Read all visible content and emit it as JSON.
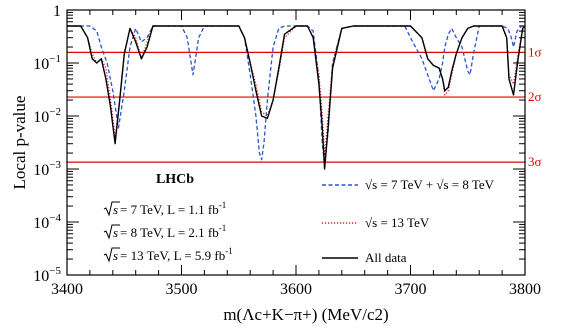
{
  "chart_data": {
    "type": "line",
    "xlabel": "m(Λc+K−π+) (MeV/c2)",
    "ylabel": "Local p-value",
    "xlim": [
      3400,
      3800
    ],
    "ylim": [
      1e-05,
      1
    ],
    "y_scale": "log",
    "x_ticks": [
      3400,
      3500,
      3600,
      3700,
      3800
    ],
    "y_ticks": [
      {
        "mant": "10",
        "exp": "−5",
        "value": 1e-05
      },
      {
        "mant": "10",
        "exp": "−4",
        "value": 0.0001
      },
      {
        "mant": "10",
        "exp": "−3",
        "value": 0.001
      },
      {
        "mant": "10",
        "exp": "−2",
        "value": 0.01
      },
      {
        "mant": "10",
        "exp": "−1",
        "value": 0.1
      },
      {
        "mant": "1",
        "exp": "",
        "value": 1
      }
    ],
    "experiment": "LHCb",
    "annotations": [
      {
        "pre": "s",
        "text": " = 7 TeV,  L = 1.1 fb",
        "sup": "-1"
      },
      {
        "pre": "s",
        "text": " = 8 TeV,  L = 2.1 fb",
        "sup": "-1"
      },
      {
        "pre": "s",
        "text": " = 13 TeV,  L = 5.9 fb",
        "sup": "-1"
      }
    ],
    "legend_position": "bottom-right",
    "sigma_lines": [
      {
        "label": "1σ",
        "p": 0.1587
      },
      {
        "label": "2σ",
        "p": 0.02275
      },
      {
        "label": "3σ",
        "p": 0.00135
      }
    ],
    "series": [
      {
        "name": "√s = 7 TeV + √s = 8 TeV",
        "color": "#2a55c8",
        "style": "dashed",
        "x": [
          3400,
          3412,
          3420,
          3426,
          3430,
          3435,
          3440,
          3445,
          3450,
          3455,
          3460,
          3465,
          3470,
          3475,
          3480,
          3485,
          3490,
          3495,
          3500,
          3505,
          3510,
          3515,
          3520,
          3525,
          3530,
          3540,
          3550,
          3555,
          3560,
          3565,
          3568,
          3570,
          3572,
          3575,
          3580,
          3585,
          3590,
          3600,
          3610,
          3615,
          3620,
          3623,
          3625,
          3628,
          3632,
          3640,
          3650,
          3660,
          3670,
          3680,
          3690,
          3695,
          3700,
          3710,
          3715,
          3720,
          3725,
          3728,
          3730,
          3733,
          3736,
          3740,
          3745,
          3750,
          3752,
          3755,
          3760,
          3770,
          3780,
          3785,
          3788,
          3790,
          3793,
          3797,
          3800
        ],
        "y": [
          0.5,
          0.5,
          0.5,
          0.4,
          0.2,
          0.1,
          0.03,
          0.006,
          0.03,
          0.2,
          0.45,
          0.25,
          0.3,
          0.5,
          0.5,
          0.5,
          0.5,
          0.5,
          0.5,
          0.3,
          0.06,
          0.3,
          0.5,
          0.5,
          0.5,
          0.5,
          0.5,
          0.3,
          0.06,
          0.01,
          0.002,
          0.0015,
          0.003,
          0.02,
          0.2,
          0.45,
          0.5,
          0.5,
          0.5,
          0.4,
          0.05,
          0.003,
          0.0012,
          0.005,
          0.1,
          0.45,
          0.5,
          0.5,
          0.5,
          0.5,
          0.5,
          0.5,
          0.3,
          0.12,
          0.06,
          0.03,
          0.05,
          0.1,
          0.2,
          0.35,
          0.45,
          0.3,
          0.2,
          0.07,
          0.06,
          0.15,
          0.5,
          0.5,
          0.5,
          0.45,
          0.3,
          0.2,
          0.4,
          0.5,
          0.5
        ]
      },
      {
        "name": "√s = 13 TeV",
        "color": "#cc2222",
        "style": "dotted",
        "x": [
          3400,
          3412,
          3418,
          3422,
          3426,
          3430,
          3434,
          3438,
          3442,
          3446,
          3450,
          3455,
          3460,
          3465,
          3470,
          3475,
          3480,
          3490,
          3500,
          3510,
          3520,
          3530,
          3540,
          3550,
          3555,
          3560,
          3565,
          3570,
          3575,
          3580,
          3585,
          3590,
          3600,
          3610,
          3615,
          3620,
          3623,
          3625,
          3628,
          3632,
          3640,
          3650,
          3660,
          3670,
          3680,
          3690,
          3700,
          3710,
          3715,
          3720,
          3725,
          3728,
          3730,
          3733,
          3736,
          3740,
          3745,
          3750,
          3755,
          3760,
          3770,
          3780,
          3784,
          3786,
          3790,
          3794,
          3798,
          3800
        ],
        "y": [
          0.5,
          0.5,
          0.3,
          0.15,
          0.1,
          0.12,
          0.08,
          0.02,
          0.004,
          0.02,
          0.15,
          0.45,
          0.3,
          0.12,
          0.25,
          0.5,
          0.5,
          0.5,
          0.5,
          0.5,
          0.5,
          0.5,
          0.5,
          0.5,
          0.3,
          0.1,
          0.04,
          0.012,
          0.01,
          0.02,
          0.07,
          0.3,
          0.5,
          0.5,
          0.3,
          0.06,
          0.01,
          0.0018,
          0.01,
          0.1,
          0.45,
          0.5,
          0.5,
          0.5,
          0.5,
          0.5,
          0.5,
          0.3,
          0.12,
          0.09,
          0.08,
          0.05,
          0.025,
          0.03,
          0.06,
          0.15,
          0.3,
          0.45,
          0.5,
          0.5,
          0.5,
          0.5,
          0.3,
          0.06,
          0.04,
          0.15,
          0.45,
          0.5
        ]
      },
      {
        "name": "All data",
        "color": "#000000",
        "style": "solid",
        "x": [
          3400,
          3412,
          3418,
          3422,
          3426,
          3430,
          3434,
          3438,
          3442,
          3446,
          3450,
          3455,
          3460,
          3465,
          3470,
          3475,
          3480,
          3490,
          3500,
          3510,
          3520,
          3530,
          3540,
          3550,
          3555,
          3560,
          3565,
          3570,
          3575,
          3580,
          3585,
          3590,
          3600,
          3610,
          3615,
          3620,
          3623,
          3625,
          3628,
          3632,
          3640,
          3650,
          3660,
          3670,
          3680,
          3690,
          3700,
          3710,
          3715,
          3720,
          3725,
          3728,
          3730,
          3733,
          3736,
          3740,
          3745,
          3750,
          3755,
          3760,
          3770,
          3780,
          3784,
          3786,
          3790,
          3794,
          3798,
          3800
        ],
        "y": [
          0.5,
          0.5,
          0.3,
          0.12,
          0.1,
          0.12,
          0.05,
          0.015,
          0.003,
          0.02,
          0.15,
          0.45,
          0.25,
          0.12,
          0.2,
          0.5,
          0.5,
          0.5,
          0.5,
          0.5,
          0.5,
          0.5,
          0.5,
          0.5,
          0.3,
          0.1,
          0.03,
          0.01,
          0.009,
          0.02,
          0.08,
          0.35,
          0.5,
          0.5,
          0.3,
          0.04,
          0.006,
          0.001,
          0.006,
          0.08,
          0.45,
          0.5,
          0.5,
          0.5,
          0.5,
          0.5,
          0.5,
          0.3,
          0.12,
          0.09,
          0.08,
          0.05,
          0.03,
          0.035,
          0.07,
          0.15,
          0.3,
          0.45,
          0.5,
          0.5,
          0.5,
          0.5,
          0.3,
          0.05,
          0.025,
          0.12,
          0.45,
          0.5
        ]
      }
    ]
  }
}
